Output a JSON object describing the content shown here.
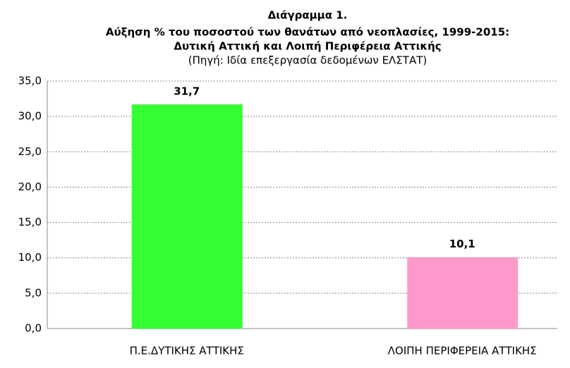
{
  "chart_data": {
    "type": "bar",
    "title": [
      "Διάγραμμα 1.",
      "Αύξηση % του ποσοστού των θανάτων από νεοπλασίες, 1999-2015:",
      "Δυτική Αττική και Λοιπή Περιφέρεια Αττικής"
    ],
    "subtitle": "(Πηγή: Ιδία επεξεργασία δεδομένων ΕΛΣΤΑΤ)",
    "categories": [
      "Π.Ε.ΔΥΤΙΚΗΣ ΑΤΤΙΚΗΣ",
      "ΛΟΙΠΗ ΠΕΡΙΦΕΡΕΙΑ ΑΤΤΙΚΗΣ"
    ],
    "values": [
      31.7,
      10.1
    ],
    "value_labels": [
      "31,7",
      "10,1"
    ],
    "colors": [
      "#33ff33",
      "#ff99cc"
    ],
    "ylim": [
      0,
      35
    ],
    "yticks": [
      {
        "value": 0,
        "label": "0,0"
      },
      {
        "value": 5,
        "label": "5,0"
      },
      {
        "value": 10,
        "label": "10,0"
      },
      {
        "value": 15,
        "label": "15,0"
      },
      {
        "value": 20,
        "label": "20,0"
      },
      {
        "value": 25,
        "label": "25,0"
      },
      {
        "value": 30,
        "label": "30,0"
      },
      {
        "value": 35,
        "label": "35,0"
      }
    ],
    "grid": true
  }
}
